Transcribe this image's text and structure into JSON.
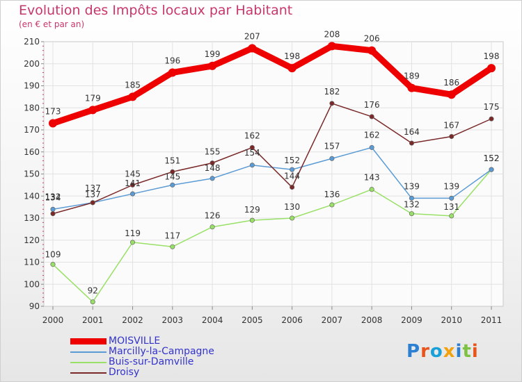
{
  "title": "Evolution des Impôts locaux par Habitant",
  "subtitle": "(en € et par an)",
  "brand": "Proxiti",
  "chart_data": {
    "type": "line",
    "title": "Evolution des Impôts locaux par Habitant",
    "subtitle": "(en € et par an)",
    "xlabel": "",
    "ylabel": "",
    "x": [
      2000,
      2001,
      2002,
      2003,
      2004,
      2005,
      2006,
      2007,
      2008,
      2009,
      2010,
      2011
    ],
    "ylim": [
      90,
      210
    ],
    "yticks": [
      90,
      100,
      110,
      120,
      130,
      140,
      150,
      160,
      170,
      180,
      190,
      200,
      210
    ],
    "grid": true,
    "legend_position": "bottom-left",
    "series": [
      {
        "name": "MOISVILLE",
        "color": "#ee0000",
        "values": [
          173,
          179,
          185,
          196,
          199,
          207,
          198,
          208,
          206,
          189,
          186,
          198
        ]
      },
      {
        "name": "Marcilly-la-Campagne",
        "color": "#5b9bd5",
        "values": [
          134,
          137,
          141,
          145,
          148,
          154,
          152,
          157,
          162,
          139,
          139,
          152
        ]
      },
      {
        "name": "Buis-sur-Damville",
        "color": "#99e066",
        "values": [
          109,
          92,
          119,
          117,
          126,
          129,
          130,
          136,
          143,
          132,
          131,
          152
        ]
      },
      {
        "name": "Droisy",
        "color": "#7a2828",
        "values": [
          132,
          137,
          145,
          151,
          155,
          162,
          144,
          182,
          176,
          164,
          167,
          175
        ]
      }
    ]
  }
}
